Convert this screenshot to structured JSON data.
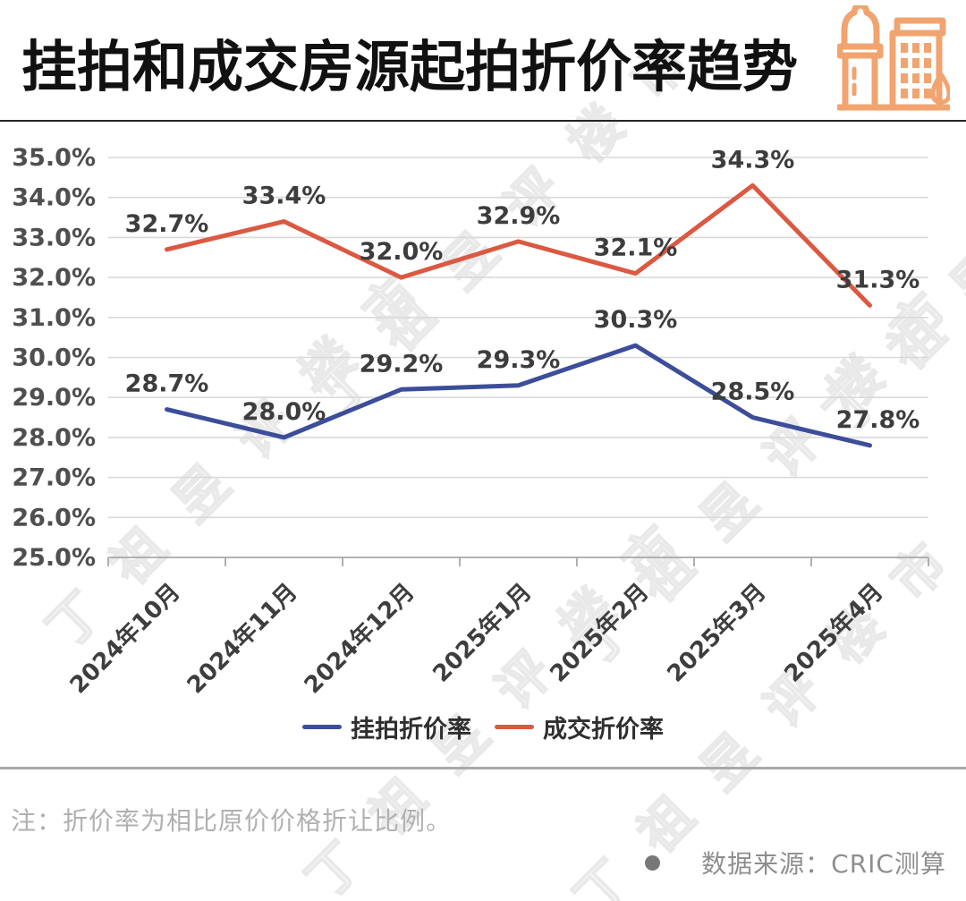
{
  "header": {
    "title": "挂拍和成交房源起拍折价率趋势",
    "icon": "city-buildings-icon"
  },
  "chart_data": {
    "type": "line",
    "categories": [
      "2024年10月",
      "2024年11月",
      "2024年12月",
      "2025年1月",
      "2025年2月",
      "2025年3月",
      "2025年4月"
    ],
    "series": [
      {
        "name": "挂拍折价率",
        "color": "#3C4E9A",
        "values": [
          28.7,
          28.0,
          29.2,
          29.3,
          30.3,
          28.5,
          27.8
        ],
        "labels": [
          "28.7%",
          "28.0%",
          "29.2%",
          "29.3%",
          "30.3%",
          "28.5%",
          "27.8%"
        ]
      },
      {
        "name": "成交折价率",
        "color": "#DB5942",
        "values": [
          32.7,
          33.4,
          32.0,
          32.9,
          32.1,
          34.3,
          31.3
        ],
        "labels": [
          "32.7%",
          "33.4%",
          "32.0%",
          "32.9%",
          "32.1%",
          "34.3%",
          "31.3%"
        ]
      }
    ],
    "ylim": [
      25,
      35
    ],
    "y_step": 1,
    "y_ticks": [
      "25.0%",
      "26.0%",
      "27.0%",
      "28.0%",
      "29.0%",
      "30.0%",
      "31.0%",
      "32.0%",
      "33.0%",
      "34.0%",
      "35.0%"
    ],
    "grid": true,
    "legend_position": "bottom"
  },
  "watermark": {
    "text": "丁祖昱评楼市"
  },
  "footer": {
    "note": "注：折价率为相比原价价格折让比例。",
    "source": "数据来源：CRIC测算"
  },
  "colors": {
    "grid": "#D9D9D9",
    "axis": "#A8A8A8",
    "y_tick_label": "#4F4F4F",
    "x_tick_label": "#3E3E3E",
    "data_label": "#3D3D3D",
    "icon_orange": "#F1A46F",
    "title_text": "#111111"
  }
}
